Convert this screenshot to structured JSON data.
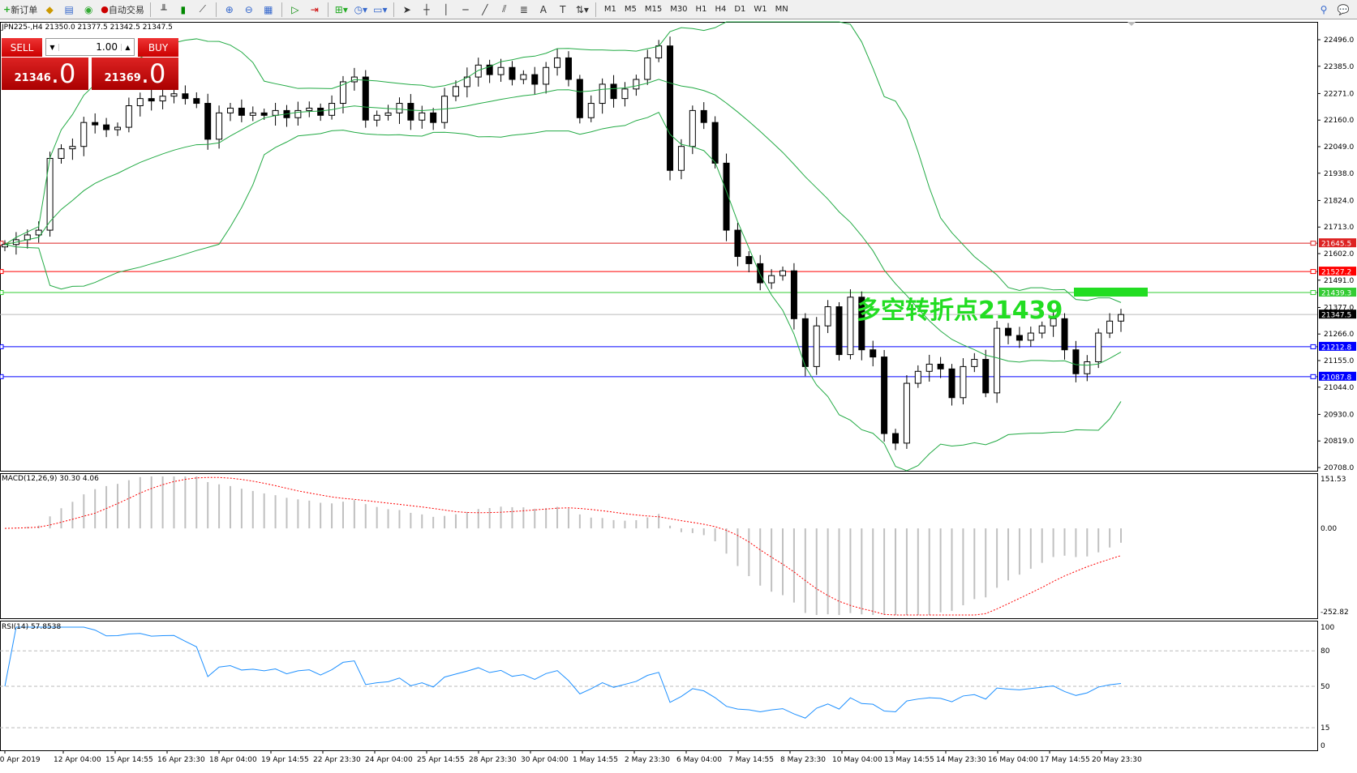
{
  "toolbar": {
    "new_order": "新订单",
    "auto_trading": "自动交易",
    "timeframes": [
      "M1",
      "M5",
      "M15",
      "M30",
      "H1",
      "H4",
      "D1",
      "W1",
      "MN"
    ]
  },
  "chart": {
    "header": "JPN225-,H4  21350.0 21377.5 21342.5 21347.5",
    "annotation": "多空转折点21439",
    "annotation_color": "#22dd22",
    "price_ticks": [
      "22496.0",
      "22385.0",
      "22271.0",
      "22160.0",
      "22049.0",
      "21938.0",
      "21824.0",
      "21713.0",
      "21602.0",
      "21491.0",
      "21377.0",
      "21266.0",
      "21155.0",
      "21044.0",
      "20930.0",
      "20819.0",
      "20708.0"
    ],
    "levels": [
      {
        "label": "21645.5",
        "value": 21645.5,
        "color": "#dd2222"
      },
      {
        "label": "21527.2",
        "value": 21527.2,
        "color": "#ff0000"
      },
      {
        "label": "21439.3",
        "value": 21439.3,
        "color": "#33cc33"
      },
      {
        "label": "21347.5",
        "value": 21347.5,
        "color": "#000000"
      },
      {
        "label": "21212.8",
        "value": 21212.8,
        "color": "#0000ff"
      },
      {
        "label": "21087.8",
        "value": 21087.8,
        "color": "#0000ff"
      }
    ],
    "time_labels": [
      "10 Apr 2019",
      "12 Apr 04:00",
      "15 Apr 14:55",
      "16 Apr 23:30",
      "18 Apr 04:00",
      "19 Apr 14:55",
      "22 Apr 23:30",
      "24 Apr 04:00",
      "25 Apr 14:55",
      "28 Apr 23:30",
      "30 Apr 04:00",
      "1 May 14:55",
      "2 May 23:30",
      "6 May 04:00",
      "7 May 14:55",
      "8 May 23:30",
      "10 May 04:00",
      "13 May 14:55",
      "14 May 23:30",
      "16 May 04:00",
      "17 May 14:55",
      "20 May 23:30"
    ],
    "closes": [
      21640,
      21660,
      21680,
      21700,
      22000,
      22040,
      22050,
      22150,
      22140,
      22120,
      22130,
      22220,
      22250,
      22240,
      22260,
      22270,
      22250,
      22230,
      22080,
      22190,
      22210,
      22180,
      22190,
      22180,
      22200,
      22170,
      22200,
      22210,
      22180,
      22230,
      22320,
      22340,
      22160,
      22180,
      22190,
      22230,
      22160,
      22190,
      22150,
      22260,
      22300,
      22340,
      22390,
      22350,
      22380,
      22330,
      22350,
      22310,
      22380,
      22420,
      22330,
      22170,
      22230,
      22310,
      22250,
      22290,
      22330,
      22420,
      22470,
      21950,
      22050,
      22200,
      22150,
      21980,
      21700,
      21590,
      21560,
      21480,
      21510,
      21530,
      21330,
      21130,
      21300,
      21380,
      21180,
      21420,
      21200,
      21170,
      20850,
      20810,
      21060,
      21110,
      21140,
      21120,
      21000,
      21130,
      21160,
      21020,
      21290,
      21260,
      21240,
      21270,
      21300,
      21330,
      21200,
      21100,
      21150,
      21270,
      21320,
      21347.5
    ],
    "bollinger_color": "#22aa44"
  },
  "macd": {
    "header": "MACD(12,26,9) 30.30 4.06",
    "ticks": [
      "151.53",
      "0.00",
      "-252.82"
    ],
    "signal_color": "#ff0000",
    "hist_color": "#c0c0c0"
  },
  "rsi": {
    "header": "RSI(14) 57.8538",
    "ticks": [
      "100",
      "80",
      "50",
      "15",
      "0"
    ],
    "line_color": "#1e90ff"
  },
  "one_click": {
    "sell": "SELL",
    "buy": "BUY",
    "lot": "1.00",
    "sell_big": "21346",
    "sell_small": ".0",
    "buy_big": "21369",
    "buy_small": ".0"
  }
}
